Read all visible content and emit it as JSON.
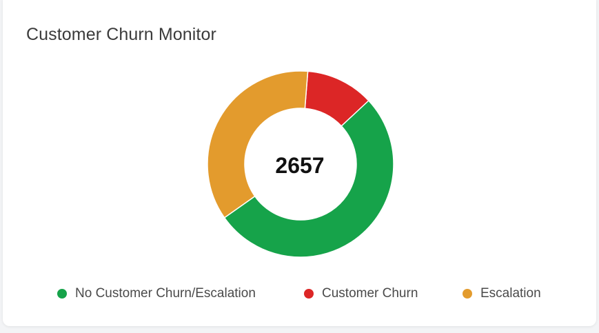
{
  "card": {
    "title": "Customer Churn Monitor"
  },
  "chart_data": {
    "type": "pie",
    "variant": "donut",
    "total_label": "2657",
    "categories": [
      "No Customer Churn/Escalation",
      "Customer Churn",
      "Escalation"
    ],
    "values": [
      1386,
      314,
      957
    ],
    "colors": [
      "#16a34a",
      "#dc2626",
      "#e39b2d"
    ],
    "legend_position": "bottom"
  }
}
